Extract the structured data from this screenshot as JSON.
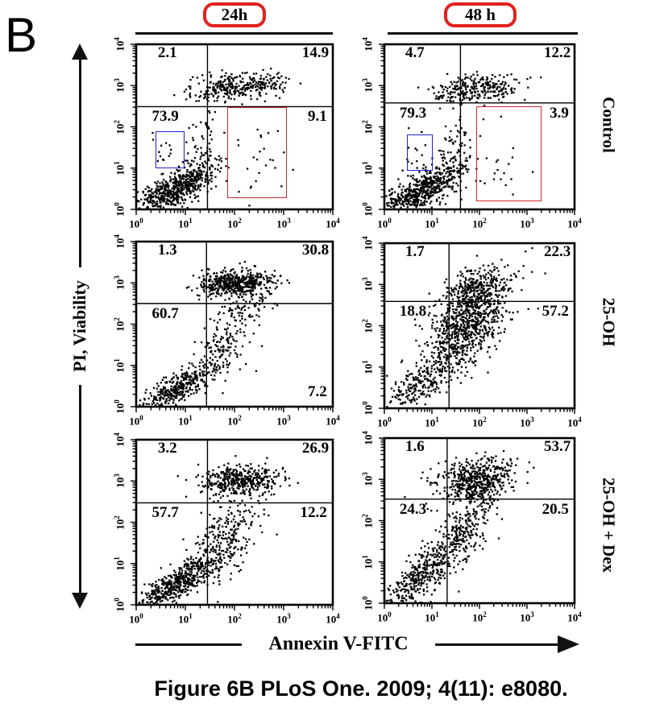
{
  "figure": {
    "panel_label": "B",
    "caption": "Figure 6B PLoS One. 2009; 4(11): e8080.",
    "column_headers": [
      {
        "label": "24h"
      },
      {
        "label": "48 h"
      }
    ],
    "row_labels": [
      "Control",
      "25-OH",
      "25-OH + Dex"
    ],
    "x_axis_label": "Annexin V-FITC",
    "y_axis_label": "PI, Viability"
  },
  "colors": {
    "badge_red": "#e2211c",
    "gate_blue": "#2323cc",
    "gate_red": "#cc2a2a",
    "ink": "#000000"
  },
  "chart_data": {
    "type": "scatter",
    "x_scale": "log",
    "y_scale": "log",
    "x_range": [
      1,
      10000
    ],
    "y_range": [
      1,
      10000
    ],
    "tick_exponents": [
      0,
      1,
      2,
      3,
      4
    ],
    "xlabel": "Annexin V-FITC",
    "ylabel": "PI, Viability",
    "plots": [
      {
        "column": "24h",
        "row": "Control",
        "quadrants": {
          "ul": "2.1",
          "ur": "14.9",
          "ll": "73.9",
          "lr": "9.1"
        },
        "lr_at_bottom": false,
        "quadrant_x_log": 1.45,
        "quadrant_y_log": 2.49,
        "gates": [
          {
            "color_key": "gate_blue",
            "x": [
              0.39,
              0.95
            ],
            "y": [
              1.04,
              1.89
            ]
          },
          {
            "color_key": "gate_red",
            "x": [
              1.86,
              3.03
            ],
            "y": [
              0.31,
              2.47
            ]
          }
        ],
        "clusters": [
          [
            0.75,
            0.45,
            0.42,
            0.3,
            0.75,
            560
          ],
          [
            1.32,
            1.25,
            0.17,
            0.5,
            0.25,
            90
          ],
          [
            2.15,
            3.0,
            0.45,
            0.17,
            0.1,
            260
          ],
          [
            1.6,
            2.85,
            0.22,
            0.14,
            0.3,
            55
          ],
          [
            2.45,
            1.2,
            0.4,
            0.6,
            0.0,
            26
          ],
          [
            0.65,
            1.45,
            0.17,
            0.28,
            0.0,
            13
          ]
        ]
      },
      {
        "column": "48 h",
        "row": "Control",
        "quadrants": {
          "ul": "4.7",
          "ur": "12.2",
          "ll": "79.3",
          "lr": "3.9"
        },
        "lr_at_bottom": false,
        "quadrant_x_log": 1.6,
        "quadrant_y_log": 2.58,
        "gates": [
          {
            "color_key": "gate_blue",
            "x": [
              0.47,
              0.98
            ],
            "y": [
              0.98,
              1.81
            ]
          },
          {
            "color_key": "gate_red",
            "x": [
              1.93,
              3.27
            ],
            "y": [
              0.23,
              2.5
            ]
          }
        ],
        "clusters": [
          [
            0.78,
            0.45,
            0.45,
            0.32,
            0.75,
            600
          ],
          [
            1.4,
            1.3,
            0.2,
            0.5,
            0.25,
            80
          ],
          [
            2.0,
            2.95,
            0.42,
            0.17,
            0.1,
            230
          ],
          [
            1.5,
            2.8,
            0.2,
            0.14,
            0.3,
            50
          ],
          [
            2.35,
            1.1,
            0.4,
            0.6,
            0.0,
            24
          ],
          [
            0.7,
            1.4,
            0.17,
            0.27,
            0.0,
            12
          ]
        ]
      },
      {
        "column": "24h",
        "row": "25-OH",
        "quadrants": {
          "ul": "1.3",
          "ur": "30.8",
          "ll": "60.7",
          "lr": "7.2"
        },
        "lr_at_bottom": true,
        "quadrant_x_log": 1.43,
        "quadrant_y_log": 2.5,
        "gates": [],
        "clusters": [
          [
            2.05,
            3.0,
            0.38,
            0.16,
            0.05,
            500
          ],
          [
            2.2,
            2.42,
            0.3,
            0.18,
            0.2,
            60
          ],
          [
            0.85,
            0.45,
            0.4,
            0.3,
            0.8,
            400
          ],
          [
            1.75,
            1.5,
            0.35,
            0.55,
            0.6,
            150
          ]
        ]
      },
      {
        "column": "48 h",
        "row": "25-OH",
        "quadrants": {
          "ul": "1.7",
          "ur": "22.3",
          "ll": "18.8",
          "lr": "57.2"
        },
        "lr_at_bottom": false,
        "quadrant_x_log": 1.36,
        "quadrant_y_log": 2.59,
        "gates": [],
        "clusters": [
          [
            1.75,
            2.1,
            0.42,
            0.62,
            0.55,
            900
          ],
          [
            1.9,
            2.9,
            0.35,
            0.24,
            0.2,
            180
          ],
          [
            0.75,
            0.6,
            0.35,
            0.35,
            0.7,
            210
          ]
        ]
      },
      {
        "column": "24h",
        "row": "25-OH + Dex",
        "quadrants": {
          "ul": "3.2",
          "ur": "26.9",
          "ll": "57.7",
          "lr": "12.2"
        },
        "lr_at_bottom": false,
        "quadrant_x_log": 1.45,
        "quadrant_y_log": 2.47,
        "gates": [],
        "clusters": [
          [
            2.1,
            3.0,
            0.4,
            0.18,
            0.1,
            420
          ],
          [
            0.8,
            0.5,
            0.45,
            0.38,
            0.85,
            520
          ],
          [
            1.8,
            1.6,
            0.35,
            0.58,
            0.55,
            280
          ]
        ]
      },
      {
        "column": "48 h",
        "row": "25-OH + Dex",
        "quadrants": {
          "ul": "1.6",
          "ur": "53.7",
          "ll": "24.3",
          "lr": "20.5"
        },
        "lr_at_bottom": false,
        "quadrant_x_log": 1.32,
        "quadrant_y_log": 2.52,
        "gates": [],
        "clusters": [
          [
            1.95,
            2.95,
            0.4,
            0.28,
            0.3,
            520
          ],
          [
            0.8,
            0.7,
            0.4,
            0.45,
            0.8,
            380
          ],
          [
            1.68,
            1.7,
            0.3,
            0.5,
            0.6,
            240
          ]
        ]
      }
    ]
  }
}
